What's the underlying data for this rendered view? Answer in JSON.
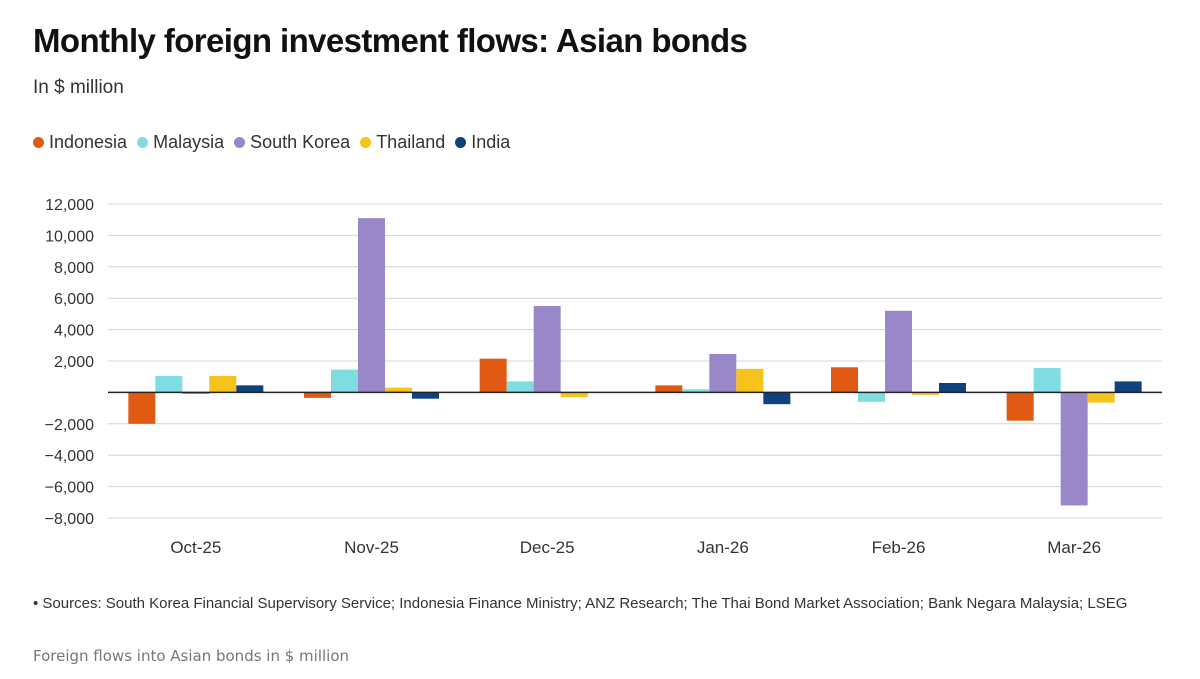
{
  "chart_data": {
    "type": "bar",
    "title": "Monthly foreign investment flows: Asian bonds",
    "subtitle": "In $ million",
    "categories": [
      "Oct-25",
      "Nov-25",
      "Dec-25",
      "Jan-26",
      "Feb-26",
      "Mar-26"
    ],
    "series": [
      {
        "name": "Indonesia",
        "color": "#e05a13",
        "values": [
          -2000,
          -350,
          2150,
          450,
          1600,
          -1800
        ]
      },
      {
        "name": "Malaysia",
        "color": "#7fdce0",
        "values": [
          1050,
          1450,
          700,
          200,
          -600,
          1550
        ]
      },
      {
        "name": "South Korea",
        "color": "#9988c8",
        "values": [
          -100,
          11100,
          5500,
          2450,
          5200,
          -7200
        ]
      },
      {
        "name": "Thailand",
        "color": "#f6c21c",
        "values": [
          1050,
          300,
          -300,
          1500,
          -150,
          -650
        ]
      },
      {
        "name": "India",
        "color": "#10417f",
        "values": [
          450,
          -400,
          0,
          -750,
          600,
          700
        ]
      }
    ],
    "yticks": [
      12000,
      10000,
      8000,
      6000,
      4000,
      2000,
      0,
      -2000,
      -4000,
      -6000,
      -8000
    ],
    "ytick_labels": [
      "12,000",
      "10,000",
      "8,000",
      "6,000",
      "4,000",
      "2,000",
      "",
      "−2,000",
      "−4,000",
      "−6,000",
      "−8,000"
    ],
    "ylim": [
      -8000,
      12000
    ],
    "grid": true,
    "legend_position": "top-left",
    "xlabel": "",
    "ylabel": ""
  },
  "footer": {
    "sources": "• Sources: South Korea Financial Supervisory Service; Indonesia Finance Ministry; ANZ Research; The Thai Bond Market Association; Bank Negara Malaysia; LSEG",
    "caption": "Foreign flows into Asian bonds in $ million"
  }
}
